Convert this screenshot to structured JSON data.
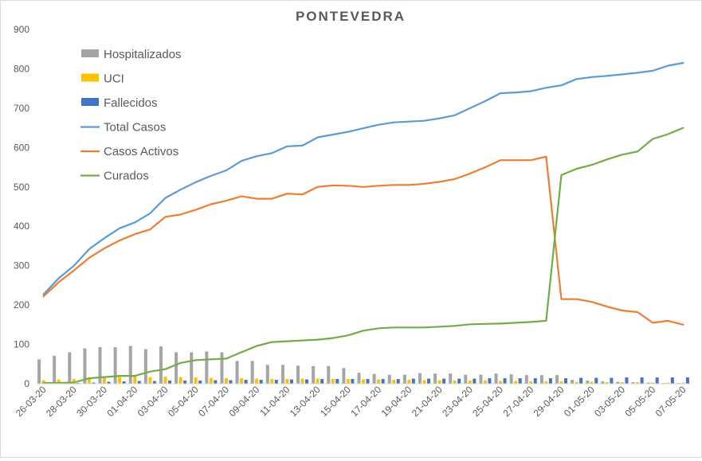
{
  "chart_data": {
    "type": "bar",
    "title": "PONTEVEDRA",
    "xlabel": "",
    "ylabel": "",
    "ylim": [
      0,
      900
    ],
    "yticks": [
      0,
      100,
      200,
      300,
      400,
      500,
      600,
      700,
      800,
      900
    ],
    "grid": false,
    "legend_position": "top-left",
    "x": [
      "26-03-20",
      "27-03-20",
      "28-03-20",
      "29-03-20",
      "30-03-20",
      "31-03-20",
      "01-04-20",
      "02-04-20",
      "03-04-20",
      "04-04-20",
      "05-04-20",
      "06-04-20",
      "07-04-20",
      "08-04-20",
      "09-04-20",
      "10-04-20",
      "11-04-20",
      "12-04-20",
      "13-04-20",
      "14-04-20",
      "15-04-20",
      "16-04-20",
      "17-04-20",
      "18-04-20",
      "19-04-20",
      "20-04-20",
      "21-04-20",
      "22-04-20",
      "23-04-20",
      "24-04-20",
      "25-04-20",
      "26-04-20",
      "27-04-20",
      "28-04-20",
      "29-04-20",
      "30-04-20",
      "01-05-20",
      "02-05-20",
      "03-05-20",
      "04-05-20",
      "05-05-20",
      "06-05-20",
      "07-05-20"
    ],
    "xtick_labels": [
      "26-03-20",
      "28-03-20",
      "30-03-20",
      "01-04-20",
      "03-04-20",
      "05-04-20",
      "07-04-20",
      "09-04-20",
      "11-04-20",
      "13-04-20",
      "15-04-20",
      "17-04-20",
      "19-04-20",
      "21-04-20",
      "23-04-20",
      "25-04-20",
      "27-04-20",
      "29-04-20",
      "01-05-20",
      "03-05-20",
      "05-05-20",
      "07-05-20"
    ],
    "series": [
      {
        "name": "Hospitalizados",
        "kind": "bar",
        "color": "#a5a5a5",
        "values": [
          62,
          71,
          80,
          90,
          93,
          93,
          96,
          88,
          95,
          80,
          80,
          82,
          80,
          58,
          58,
          48,
          48,
          46,
          45,
          45,
          40,
          28,
          25,
          23,
          23,
          27,
          26,
          26,
          23,
          23,
          26,
          24,
          22,
          22,
          22,
          10,
          8,
          6,
          5,
          4,
          3,
          2,
          2
        ]
      },
      {
        "name": "UCI",
        "kind": "bar",
        "color": "#ffc000",
        "values": [
          9,
          11,
          12,
          13,
          15,
          17,
          19,
          17,
          18,
          17,
          16,
          15,
          14,
          14,
          13,
          12,
          12,
          13,
          13,
          12,
          12,
          11,
          11,
          10,
          10,
          9,
          9,
          8,
          8,
          8,
          7,
          7,
          6,
          6,
          6,
          5,
          5,
          4,
          4,
          4,
          3,
          3,
          3
        ]
      },
      {
        "name": "Fallecidos",
        "kind": "bar",
        "color": "#4472c4",
        "values": [
          2,
          2,
          2,
          3,
          5,
          6,
          7,
          7,
          8,
          8,
          8,
          9,
          9,
          10,
          10,
          10,
          11,
          11,
          12,
          12,
          12,
          12,
          12,
          12,
          13,
          13,
          13,
          13,
          13,
          14,
          14,
          14,
          14,
          14,
          14,
          15,
          15,
          15,
          16,
          16,
          16,
          16,
          16
        ]
      },
      {
        "name": "Total Casos",
        "kind": "line",
        "color": "#5b9bd5",
        "values": [
          227,
          268,
          300,
          342,
          370,
          395,
          410,
          433,
          472,
          493,
          512,
          528,
          542,
          566,
          578,
          586,
          603,
          605,
          626,
          633,
          640,
          649,
          658,
          664,
          666,
          668,
          674,
          682,
          700,
          718,
          738,
          740,
          743,
          752,
          758,
          774,
          779,
          782,
          786,
          790,
          795,
          808,
          815
        ]
      },
      {
        "name": "Casos Activos",
        "kind": "line",
        "color": "#ed7d31",
        "values": [
          222,
          258,
          288,
          320,
          344,
          364,
          380,
          392,
          424,
          430,
          442,
          456,
          465,
          476,
          470,
          470,
          483,
          481,
          500,
          504,
          503,
          500,
          503,
          505,
          505,
          508,
          513,
          520,
          534,
          550,
          568,
          568,
          568,
          577,
          215,
          215,
          208,
          196,
          186,
          182,
          155,
          160,
          150
        ]
      },
      {
        "name": "Curados",
        "kind": "line",
        "color": "#70ad47",
        "values": [
          2,
          2,
          3,
          14,
          17,
          20,
          20,
          31,
          37,
          53,
          60,
          62,
          64,
          80,
          96,
          106,
          108,
          110,
          112,
          116,
          123,
          135,
          141,
          143,
          143,
          143,
          145,
          147,
          151,
          152,
          153,
          155,
          157,
          160,
          530,
          546,
          556,
          570,
          582,
          590,
          622,
          634,
          650
        ]
      }
    ]
  }
}
